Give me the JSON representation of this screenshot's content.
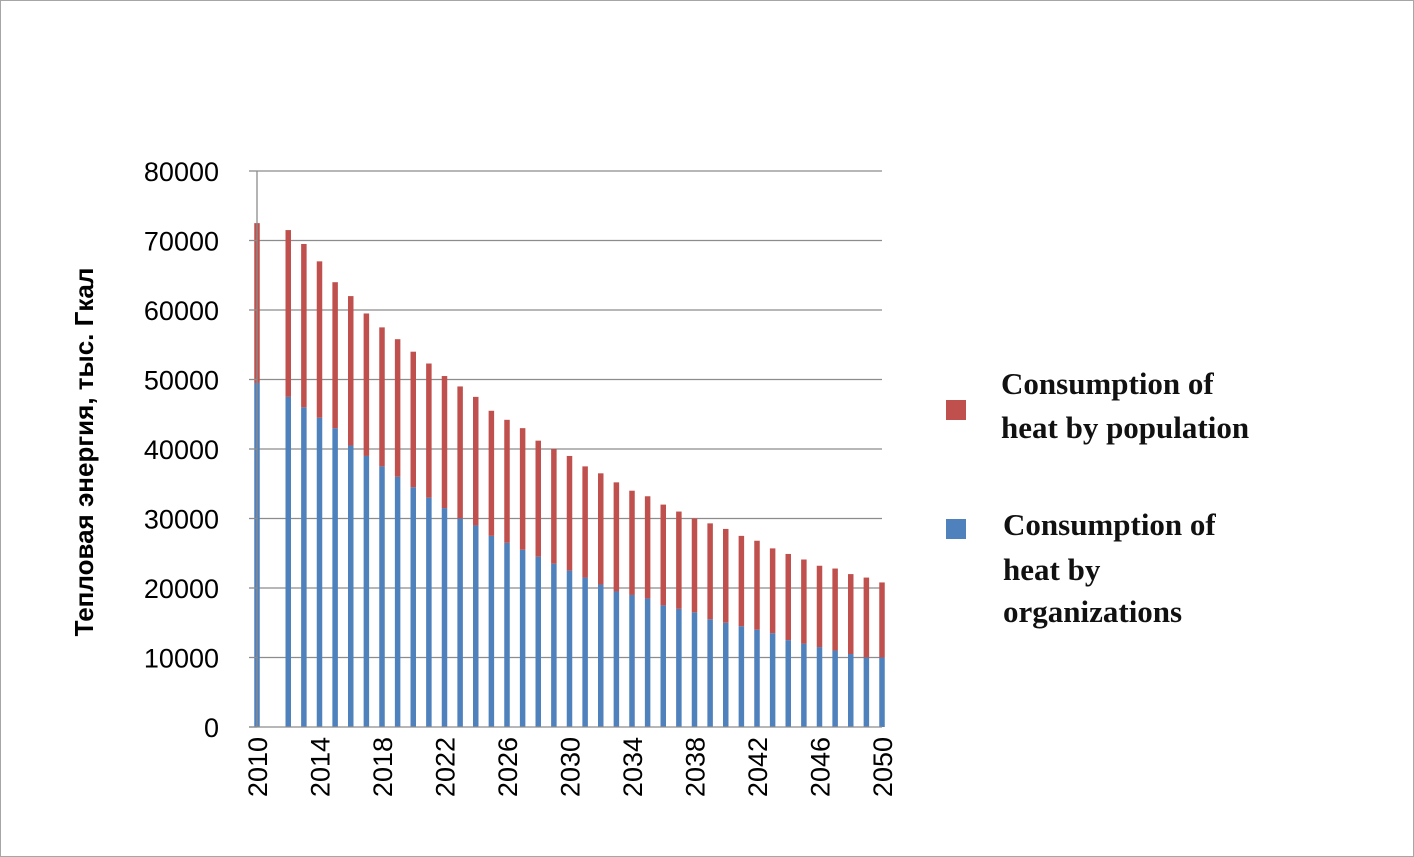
{
  "chart_data": {
    "type": "bar",
    "stacked": true,
    "ylabel": "Тепловая энергия, тыс. Гкал",
    "xlabel": "",
    "title": "",
    "ylim": [
      0,
      80000
    ],
    "yticks": [
      0,
      10000,
      20000,
      30000,
      40000,
      50000,
      60000,
      70000,
      80000
    ],
    "xtick_labels": [
      "2010",
      "2014",
      "2018",
      "2022",
      "2026",
      "2030",
      "2034",
      "2038",
      "2042",
      "2046",
      "2050"
    ],
    "grid": true,
    "legend_position": "right",
    "categories": [
      2010,
      2011,
      2012,
      2013,
      2014,
      2015,
      2016,
      2017,
      2018,
      2019,
      2020,
      2021,
      2022,
      2023,
      2024,
      2025,
      2026,
      2027,
      2028,
      2029,
      2030,
      2031,
      2032,
      2033,
      2034,
      2035,
      2036,
      2037,
      2038,
      2039,
      2040,
      2041,
      2042,
      2043,
      2044,
      2045,
      2046,
      2047,
      2048,
      2049,
      2050
    ],
    "series": [
      {
        "name": "Consumption of heat by organizations",
        "color": "#4f81bd",
        "values": [
          49500,
          null,
          47500,
          46000,
          44500,
          43000,
          40500,
          39000,
          37500,
          36000,
          34500,
          33000,
          31500,
          30000,
          29000,
          27500,
          26500,
          25500,
          24500,
          23500,
          22500,
          21500,
          20500,
          19500,
          19000,
          18500,
          17500,
          17000,
          16500,
          15500,
          15000,
          14500,
          14000,
          13500,
          12500,
          12000,
          11500,
          11000,
          10500,
          10000,
          10000
        ]
      },
      {
        "name": "Consumption of heat by population",
        "color": "#c0504d",
        "values": [
          23000,
          null,
          24000,
          23500,
          22500,
          21000,
          21500,
          20500,
          20000,
          19800,
          19500,
          19300,
          19000,
          19000,
          18500,
          18000,
          17700,
          17500,
          16700,
          16500,
          16500,
          16000,
          16000,
          15700,
          15000,
          14700,
          14500,
          14000,
          13500,
          13800,
          13500,
          13000,
          12800,
          12200,
          12400,
          12100,
          11700,
          11800,
          11500,
          11500,
          10800
        ]
      }
    ]
  },
  "legend": {
    "population": [
      "Consumption of",
      "heat by population"
    ],
    "organizations": [
      "Consumption of",
      "heat by",
      "organizations"
    ]
  }
}
